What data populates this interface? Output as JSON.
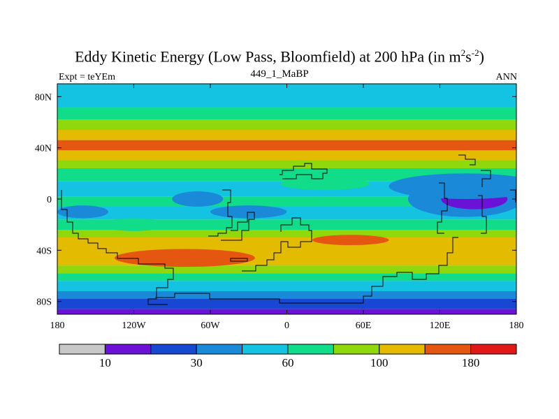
{
  "header": {
    "title_main": "Eddy Kinetic Energy (Low Pass, Bloomfield) at 200 hPa (in m",
    "title_sup1": "2",
    "title_mid": "s",
    "title_sup2": "-2",
    "title_end": ")",
    "left_label": "Expt = teYEm",
    "center_label": "449_1_MaBP",
    "right_label": "ANN"
  },
  "chart_data": {
    "type": "heatmap",
    "title": "Eddy Kinetic Energy (Low Pass, Bloomfield) at 200 hPa (in m^2 s^-2)",
    "subtitle": "449_1_MaBP",
    "experiment": "Expt = teYEm",
    "season": "ANN",
    "xlim": [
      -180,
      180
    ],
    "ylim": [
      -90,
      90
    ],
    "x_ticks": [
      {
        "value": -180,
        "label": "180"
      },
      {
        "value": -120,
        "label": "120W"
      },
      {
        "value": -60,
        "label": "60W"
      },
      {
        "value": 0,
        "label": "0"
      },
      {
        "value": 60,
        "label": "60E"
      },
      {
        "value": 120,
        "label": "120E"
      },
      {
        "value": 180,
        "label": "180"
      }
    ],
    "y_ticks": [
      {
        "value": 80,
        "label": "80N"
      },
      {
        "value": 40,
        "label": "40N"
      },
      {
        "value": 0,
        "label": "0"
      },
      {
        "value": -40,
        "label": "40S"
      },
      {
        "value": -80,
        "label": "80S"
      }
    ],
    "colorbar": {
      "levels": [
        10,
        20,
        30,
        45,
        60,
        80,
        100,
        140,
        180
      ],
      "labeled_levels": [
        {
          "index": 0,
          "label": "10"
        },
        {
          "index": 2,
          "label": "30"
        },
        {
          "index": 4,
          "label": "60"
        },
        {
          "index": 6,
          "label": "100"
        },
        {
          "index": 8,
          "label": "180"
        }
      ],
      "colors": [
        "#c8c8c8",
        "#6a12d6",
        "#1848d2",
        "#1a8ad8",
        "#14c3e1",
        "#10dc8a",
        "#8ed80c",
        "#e3bb00",
        "#e55610",
        "#e01818"
      ]
    },
    "zonal_bands": [
      {
        "lat_from": 90,
        "lat_to": 84,
        "class": 4
      },
      {
        "lat_from": 84,
        "lat_to": 72,
        "class": 4
      },
      {
        "lat_from": 72,
        "lat_to": 62,
        "class": 5
      },
      {
        "lat_from": 62,
        "lat_to": 54,
        "class": 6
      },
      {
        "lat_from": 54,
        "lat_to": 46,
        "class": 7
      },
      {
        "lat_from": 46,
        "lat_to": 38,
        "class": 8
      },
      {
        "lat_from": 38,
        "lat_to": 30,
        "class": 7
      },
      {
        "lat_from": 30,
        "lat_to": 24,
        "class": 6
      },
      {
        "lat_from": 24,
        "lat_to": 14,
        "class": 5
      },
      {
        "lat_from": 14,
        "lat_to": 2,
        "class": 4
      },
      {
        "lat_from": 2,
        "lat_to": -6,
        "class": 5
      },
      {
        "lat_from": -6,
        "lat_to": -16,
        "class": 4
      },
      {
        "lat_from": -16,
        "lat_to": -24,
        "class": 5
      },
      {
        "lat_from": -24,
        "lat_to": -30,
        "class": 6
      },
      {
        "lat_from": -30,
        "lat_to": -42,
        "class": 7
      },
      {
        "lat_from": -42,
        "lat_to": -52,
        "class": 7
      },
      {
        "lat_from": -52,
        "lat_to": -58,
        "class": 6
      },
      {
        "lat_from": -58,
        "lat_to": -64,
        "class": 5
      },
      {
        "lat_from": -64,
        "lat_to": -72,
        "class": 4
      },
      {
        "lat_from": -72,
        "lat_to": -78,
        "class": 3
      },
      {
        "lat_from": -78,
        "lat_to": -86,
        "class": 2
      },
      {
        "lat_from": -86,
        "lat_to": -90,
        "class": 1
      }
    ],
    "features": [
      {
        "lon": 140,
        "lat": 0,
        "rlon": 45,
        "rlat": 14,
        "class": 3
      },
      {
        "lon": 147,
        "lat": 0,
        "rlon": 26,
        "rlat": 8,
        "class": 1
      },
      {
        "lon": 140,
        "lat": 10,
        "rlon": 60,
        "rlat": 10,
        "class": 3
      },
      {
        "lon": -70,
        "lat": 0,
        "rlon": 20,
        "rlat": 6,
        "class": 3
      },
      {
        "lon": -30,
        "lat": -10,
        "rlon": 30,
        "rlat": 5,
        "class": 3
      },
      {
        "lon": -160,
        "lat": -10,
        "rlon": 20,
        "rlat": 5,
        "class": 3
      },
      {
        "lon": -80,
        "lat": -46,
        "rlon": 55,
        "rlat": 7,
        "class": 8
      },
      {
        "lon": 50,
        "lat": -32,
        "rlon": 30,
        "rlat": 4,
        "class": 8
      },
      {
        "lon": -120,
        "lat": -20,
        "rlon": 25,
        "rlat": 5,
        "class": 5
      },
      {
        "lon": 30,
        "lat": 12,
        "rlon": 35,
        "rlat": 5,
        "class": 5
      }
    ]
  }
}
